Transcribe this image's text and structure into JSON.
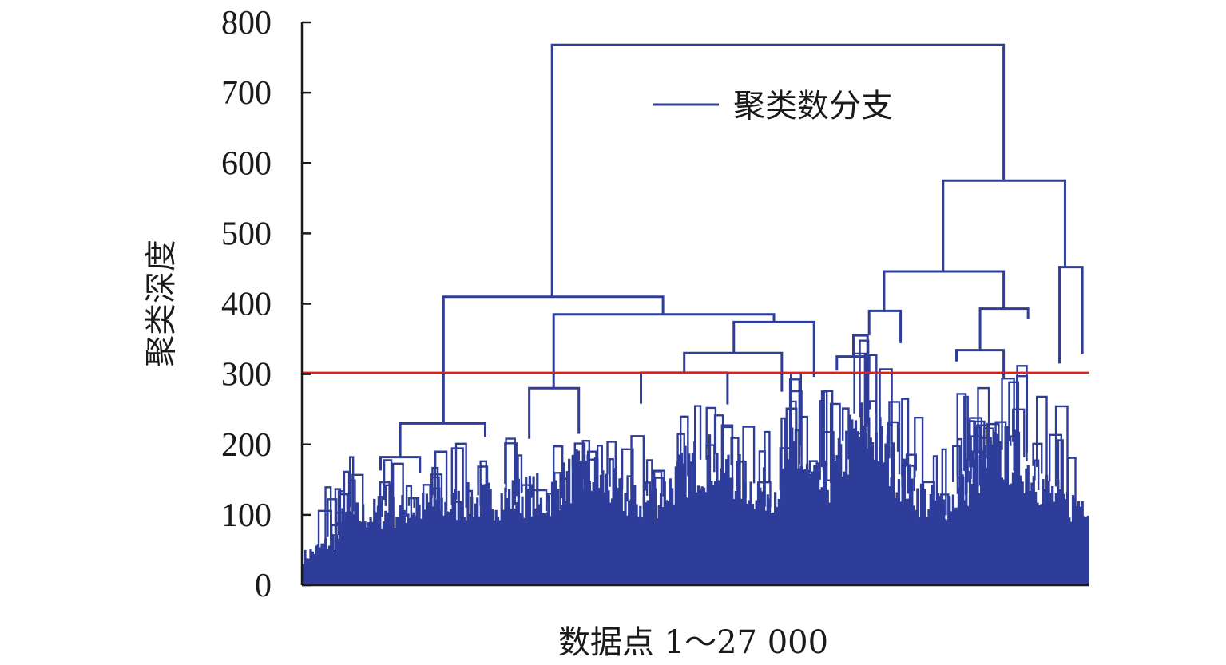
{
  "chart_data": {
    "type": "dendrogram",
    "xlabel": "数据点 1～27 000",
    "ylabel": "聚类深度",
    "ylim": [
      0,
      800
    ],
    "yticks": [
      "0",
      "100",
      "200",
      "300",
      "400",
      "500",
      "600",
      "700",
      "800"
    ],
    "grid": false,
    "legend": {
      "placement": "top-right",
      "entries": [
        {
          "name": "聚类数分支",
          "color": "#2e3d9a"
        }
      ]
    },
    "threshold_line": {
      "y": 302,
      "color": "#e0201f"
    },
    "colors": {
      "branch": "#2e3d9a",
      "fill": "#2e3d9a",
      "threshold": "#e0201f",
      "axis": "#1a1a1a"
    },
    "merges": [
      {
        "depth": 768,
        "left_x": 0.318,
        "right_x": 0.892,
        "left_top": 410,
        "right_top": 575
      },
      {
        "depth": 575,
        "left_x": 0.815,
        "right_x": 0.97,
        "left_top": 446,
        "right_top": 452
      },
      {
        "depth": 452,
        "left_x": 0.963,
        "right_x": 0.992,
        "left_top": 315,
        "right_top": 328
      },
      {
        "depth": 446,
        "left_x": 0.74,
        "right_x": 0.892,
        "left_top": 390,
        "right_top": 393
      },
      {
        "depth": 393,
        "left_x": 0.862,
        "right_x": 0.923,
        "left_top": 334,
        "right_top": 378
      },
      {
        "depth": 390,
        "left_x": 0.721,
        "right_x": 0.761,
        "left_top": 355,
        "right_top": 344
      },
      {
        "depth": 355,
        "left_x": 0.701,
        "right_x": 0.719,
        "left_top": 325,
        "right_top": 300
      },
      {
        "depth": 334,
        "left_x": 0.832,
        "right_x": 0.892,
        "left_top": 318,
        "right_top": 295
      },
      {
        "depth": 325,
        "left_x": 0.68,
        "right_x": 0.721,
        "left_top": 305,
        "right_top": 300
      },
      {
        "depth": 410,
        "left_x": 0.18,
        "right_x": 0.459,
        "left_top": 230,
        "right_top": 385
      },
      {
        "depth": 385,
        "left_x": 0.32,
        "right_x": 0.6,
        "left_top": 280,
        "right_top": 374
      },
      {
        "depth": 374,
        "left_x": 0.549,
        "right_x": 0.651,
        "left_top": 330,
        "right_top": 296
      },
      {
        "depth": 330,
        "left_x": 0.486,
        "right_x": 0.61,
        "left_top": 302,
        "right_top": 275
      },
      {
        "depth": 302,
        "left_x": 0.431,
        "right_x": 0.541,
        "left_top": 258,
        "right_top": 257
      },
      {
        "depth": 280,
        "left_x": 0.289,
        "right_x": 0.352,
        "left_top": 208,
        "right_top": 215
      },
      {
        "depth": 230,
        "left_x": 0.125,
        "right_x": 0.233,
        "left_top": 182,
        "right_top": 210
      },
      {
        "depth": 182,
        "left_x": 0.1,
        "right_x": 0.15,
        "left_top": 163,
        "right_top": 160
      }
    ]
  }
}
